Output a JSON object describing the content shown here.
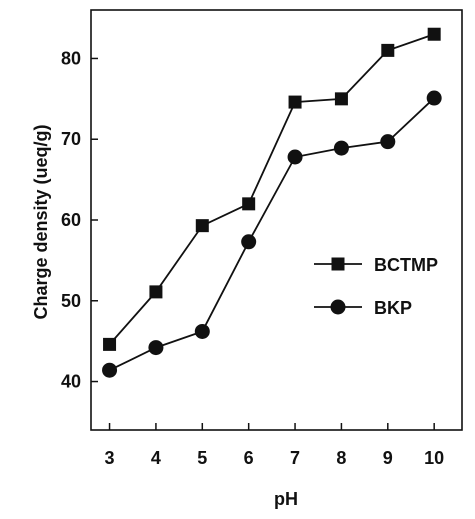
{
  "chart_data": {
    "type": "line",
    "title": "",
    "xlabel": "pH",
    "ylabel": "Charge density (ueq/g)",
    "x": [
      3,
      4,
      5,
      6,
      7,
      8,
      9,
      10
    ],
    "xlim": [
      2.6,
      10.6
    ],
    "ylim": [
      34,
      86
    ],
    "yticks": [
      40,
      50,
      60,
      70,
      80
    ],
    "grid": false,
    "legend_position": "right",
    "series": [
      {
        "name": "BCTMP",
        "marker": "square",
        "color": "#111111",
        "values": [
          44.6,
          51.1,
          59.3,
          62.0,
          74.6,
          75.0,
          81.0,
          83.0
        ]
      },
      {
        "name": "BKP",
        "marker": "circle",
        "color": "#111111",
        "values": [
          41.4,
          44.2,
          46.2,
          57.3,
          67.8,
          68.9,
          69.7,
          75.1
        ]
      }
    ]
  }
}
